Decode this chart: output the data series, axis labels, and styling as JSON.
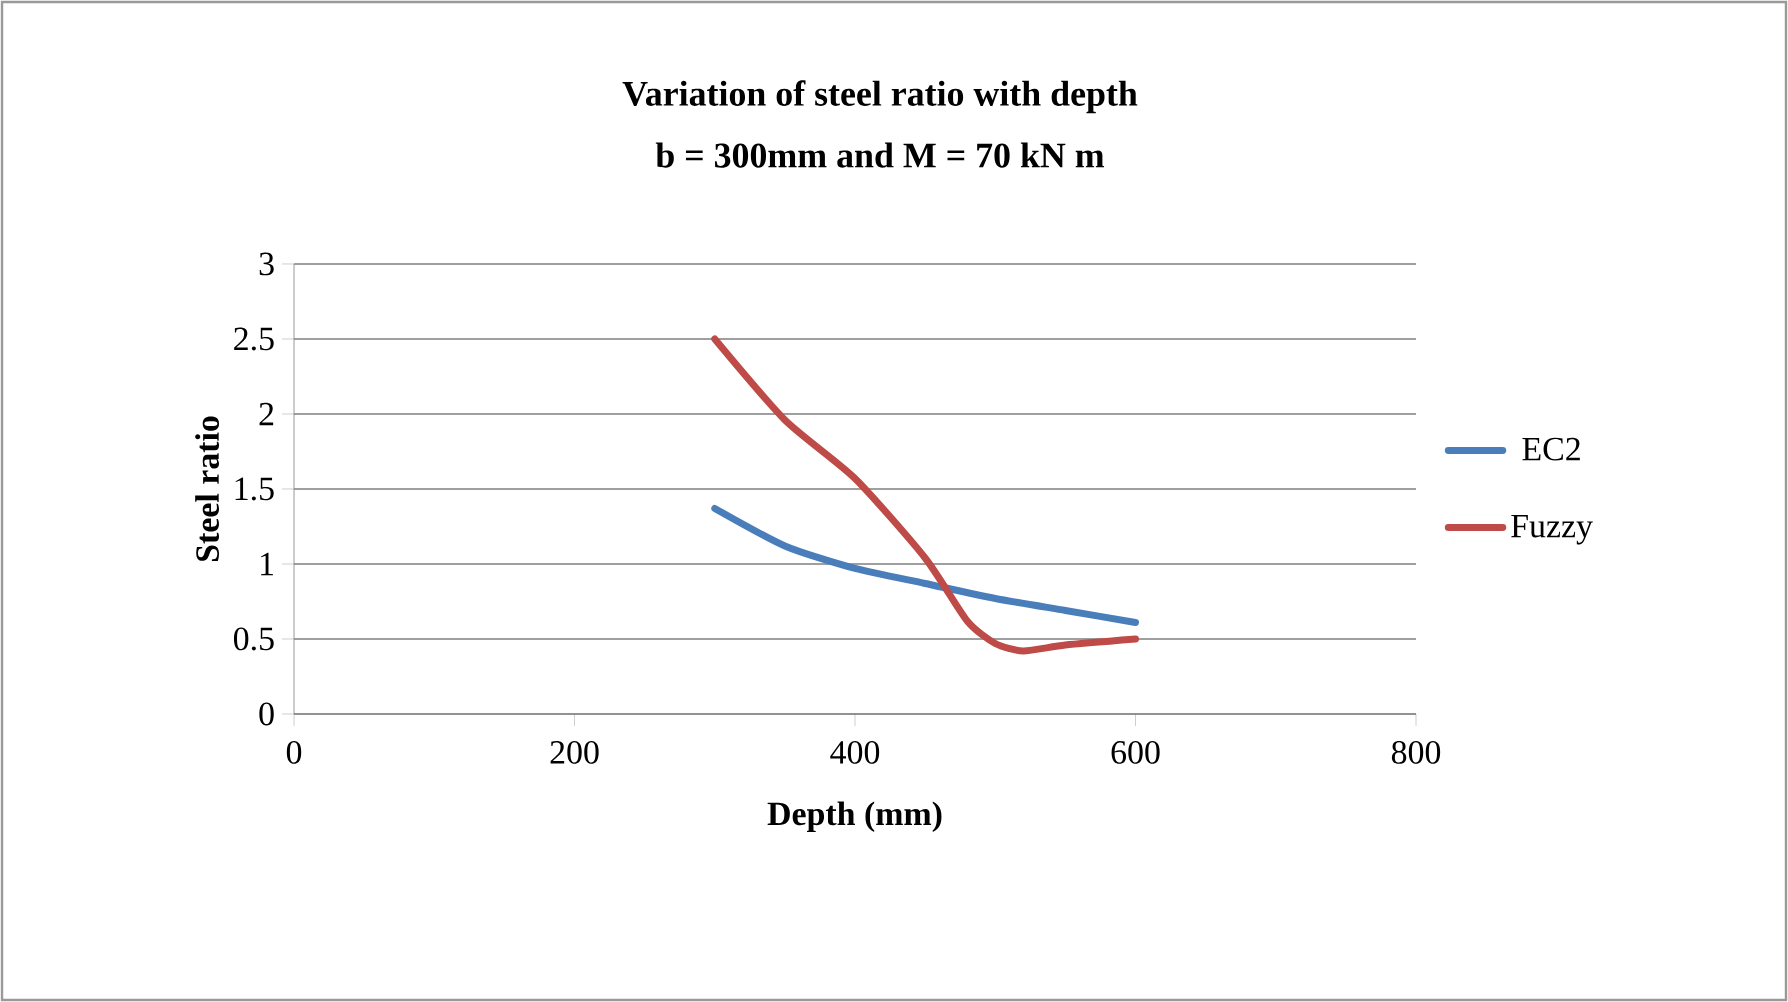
{
  "chart_data": {
    "type": "line",
    "title": "Variation of steel ratio with depth\nb = 300mm and M = 70 kN m",
    "xlabel": "Depth (mm)",
    "ylabel": "Steel ratio",
    "xlim": [
      0,
      800
    ],
    "xticks": [
      0,
      200,
      400,
      600,
      800
    ],
    "ylim": [
      0,
      3
    ],
    "yticks": [
      0,
      0.5,
      1,
      1.5,
      2,
      2.5,
      3
    ],
    "grid": "y",
    "legend": "right",
    "series": [
      {
        "name": "EC2",
        "color": "#4a7ebb",
        "x": [
          300,
          350,
          400,
          450,
          500,
          550,
          600
        ],
        "values": [
          1.37,
          1.12,
          0.97,
          0.87,
          0.77,
          0.69,
          0.61
        ]
      },
      {
        "name": "Fuzzy",
        "color": "#be4b48",
        "x": [
          300,
          350,
          400,
          450,
          480,
          500,
          520,
          550,
          600
        ],
        "values": [
          2.5,
          1.96,
          1.57,
          1.04,
          0.62,
          0.47,
          0.42,
          0.46,
          0.5
        ]
      }
    ]
  }
}
